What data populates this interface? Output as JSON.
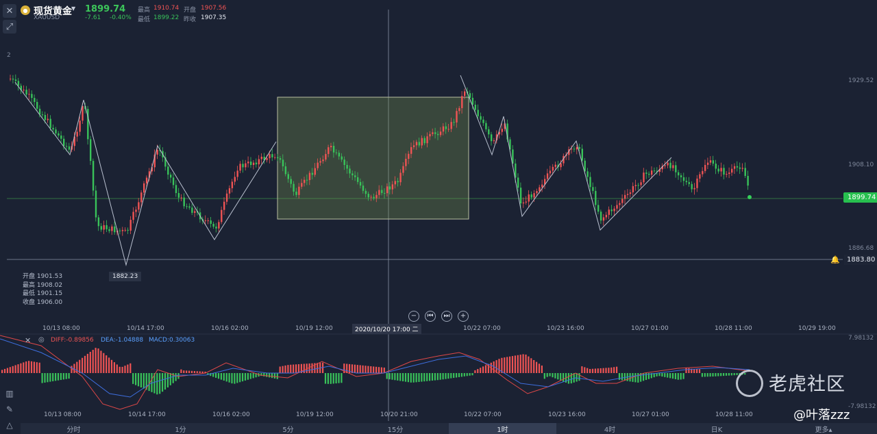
{
  "header": {
    "name": "现货黄金",
    "symbol": "XAUUSD",
    "price": "1899.74",
    "change": "-7.61",
    "change_pct": "-0.40%",
    "high_label": "最高",
    "high": "1910.74",
    "open_label": "开盘",
    "open": "1907.56",
    "low_label": "最低",
    "low": "1899.22",
    "prev_close_label": "昨收",
    "prev_close": "1907.35"
  },
  "price_axis": [
    "1929.52",
    "1908.10",
    "1886.68"
  ],
  "current_price_tag": "1899.74",
  "alert_level_tag": "1883.80",
  "low_marker": "1882.23",
  "ohlc_panel": {
    "open": "开盘 1901.53",
    "high": "最高 1908.02",
    "low": "最低 1901.15",
    "close": "收盘 1906.00"
  },
  "time_axis_main": [
    "10/13 08:00",
    "10/14 17:00",
    "10/16 02:00",
    "10/19 12:00",
    "10/22 07:00",
    "10/23 16:00",
    "10/27 01:00",
    "10/28 11:00",
    "10/29 19:00"
  ],
  "crosshair_time": "2020/10/20 17:00 二",
  "macd": {
    "diff": "DIFF:-0.89856",
    "dea": "DEA:-1.04888",
    "macd": "MACD:0.30063",
    "axis_top": "7.98132",
    "axis_bottom": "-7.98132"
  },
  "time_axis_sub": [
    "10/13 08:00",
    "10/14 17:00",
    "10/16 02:00",
    "10/19 12:00",
    "10/20 21:00",
    "10/22 07:00",
    "10/23 16:00",
    "10/27 01:00",
    "10/28 11:00"
  ],
  "period_tabs": [
    "分时",
    "1分",
    "5分",
    "15分",
    "1时",
    "4时",
    "日K",
    "更多▴"
  ],
  "watermark": {
    "brand": "老虎社区",
    "author": "@叶落zzz"
  },
  "colors": {
    "up": "#f05454",
    "down": "#39c35a",
    "bg": "#1b2233",
    "diff_line": "#e04848",
    "dea_line": "#3e6fe0"
  }
}
